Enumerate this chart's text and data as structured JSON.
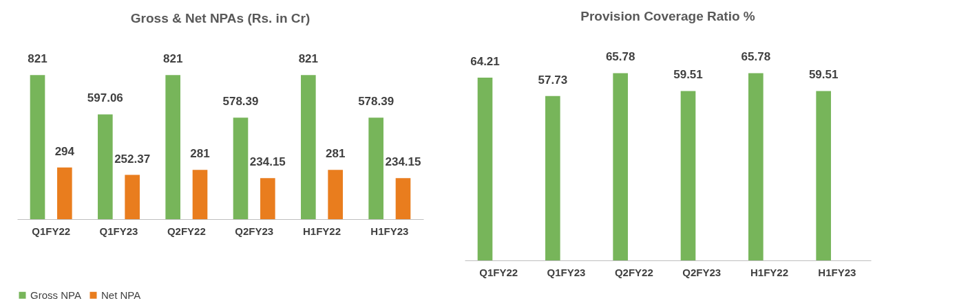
{
  "chart_data": [
    {
      "type": "bar",
      "title": "Gross & Net NPAs (Rs. in Cr)",
      "categories": [
        "Q1FY22",
        "Q1FY23",
        "Q2FY22",
        "Q2FY23",
        "H1FY22",
        "H1FY23"
      ],
      "series": [
        {
          "name": "Gross NPA",
          "color": "#77b55a",
          "values": [
            821,
            597.06,
            821,
            578.39,
            821,
            578.39
          ]
        },
        {
          "name": "Net NPA",
          "color": "#e97d1e",
          "values": [
            294,
            252.37,
            281,
            234.15,
            281,
            234.15
          ]
        }
      ],
      "data_labels": true,
      "legend": "bottom",
      "grid": false,
      "tick_labels": "x"
    },
    {
      "type": "bar",
      "title": "Provision Coverage Ratio %",
      "categories": [
        "Q1FY22",
        "Q1FY23",
        "Q2FY22",
        "Q2FY23",
        "H1FY22",
        "H1FY23"
      ],
      "values": [
        64.21,
        57.73,
        65.78,
        59.51,
        65.78,
        59.51
      ],
      "color": "#77b55a",
      "data_labels": true,
      "grid": false,
      "tick_labels": "x"
    }
  ]
}
